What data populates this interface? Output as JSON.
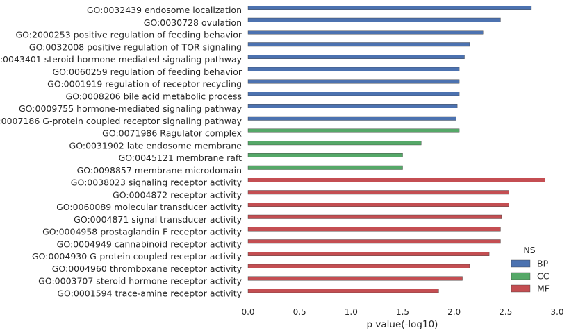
{
  "chart_data": {
    "type": "bar",
    "orientation": "horizontal",
    "categories": [
      "GO:0032439 endosome localization",
      "GO:0030728 ovulation",
      "GO:2000253 positive regulation of feeding behavior",
      "GO:0032008 positive regulation of TOR signaling",
      "GO:0043401 steroid hormone mediated signaling pathway",
      "GO:0060259 regulation of feeding behavior",
      "GO:0001919 regulation of receptor recycling",
      "GO:0008206 bile acid metabolic process",
      "GO:0009755 hormone-mediated signaling pathway",
      "GO:0007186 G-protein coupled receptor signaling pathway",
      "GO:0071986 Ragulator complex",
      "GO:0031902 late endosome membrane",
      "GO:0045121 membrane raft",
      "GO:0098857 membrane microdomain",
      "GO:0038023 signaling receptor activity",
      "GO:0004872 receptor activity",
      "GO:0060089 molecular transducer activity",
      "GO:0004871 signal transducer activity",
      "GO:0004958 prostaglandin F receptor activity",
      "GO:0004949 cannabinoid receptor activity",
      "GO:0004930 G-protein coupled receptor activity",
      "GO:0004960 thromboxane receptor activity",
      "GO:0003707 steroid hormone receptor activity",
      "GO:0001594 trace-amine receptor activity"
    ],
    "values": [
      2.75,
      2.45,
      2.28,
      2.15,
      2.1,
      2.05,
      2.05,
      2.05,
      2.03,
      2.02,
      2.05,
      1.68,
      1.5,
      1.5,
      2.88,
      2.53,
      2.53,
      2.46,
      2.45,
      2.45,
      2.34,
      2.15,
      2.08,
      1.85
    ],
    "groups": [
      "BP",
      "BP",
      "BP",
      "BP",
      "BP",
      "BP",
      "BP",
      "BP",
      "BP",
      "BP",
      "CC",
      "CC",
      "CC",
      "CC",
      "MF",
      "MF",
      "MF",
      "MF",
      "MF",
      "MF",
      "MF",
      "MF",
      "MF",
      "MF"
    ],
    "series": [
      {
        "name": "BP",
        "color": "#4c72b0"
      },
      {
        "name": "CC",
        "color": "#55a868"
      },
      {
        "name": "MF",
        "color": "#c44e52"
      }
    ],
    "xlabel": "p value(-log10)",
    "xlim": [
      0,
      3.0
    ],
    "xticks": [
      "0.0",
      "0.5",
      "1.0",
      "1.5",
      "2.0",
      "2.5",
      "3.0"
    ],
    "grid": false,
    "legend": {
      "title": "NS",
      "position": "lower-right"
    }
  }
}
